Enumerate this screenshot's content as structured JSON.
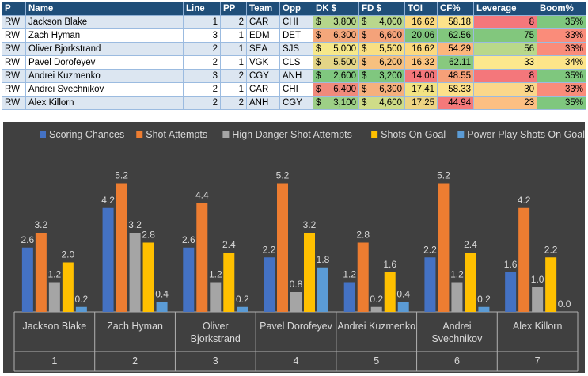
{
  "table": {
    "headers": [
      "P",
      "Name",
      "Line",
      "PP",
      "Team",
      "Opp",
      "DK $",
      "FD $",
      "TOI",
      "CF%",
      "Leverage",
      "Boom%"
    ],
    "rows": [
      {
        "pos": "RW",
        "name": "Jackson Blake",
        "line": "1",
        "pp": "2",
        "team": "CAR",
        "opp": "CHI",
        "dk": "3,800",
        "fd": "4,000",
        "toi": "16.62",
        "cf": "58.18",
        "lev": "8",
        "boom": "35%"
      },
      {
        "pos": "RW",
        "name": "Zach Hyman",
        "line": "3",
        "pp": "1",
        "team": "EDM",
        "opp": "DET",
        "dk": "6,300",
        "fd": "6,600",
        "toi": "20.06",
        "cf": "62.56",
        "lev": "75",
        "boom": "33%"
      },
      {
        "pos": "RW",
        "name": "Oliver Bjorkstrand",
        "line": "2",
        "pp": "1",
        "team": "SEA",
        "opp": "SJS",
        "dk": "5,000",
        "fd": "5,500",
        "toi": "16.62",
        "cf": "54.29",
        "lev": "56",
        "boom": "33%"
      },
      {
        "pos": "RW",
        "name": "Pavel Dorofeyev",
        "line": "2",
        "pp": "1",
        "team": "VGK",
        "opp": "CLS",
        "dk": "5,500",
        "fd": "6,200",
        "toi": "16.32",
        "cf": "62.11",
        "lev": "33",
        "boom": "34%"
      },
      {
        "pos": "RW",
        "name": "Andrei Kuzmenko",
        "line": "3",
        "pp": "2",
        "team": "CGY",
        "opp": "ANH",
        "dk": "2,600",
        "fd": "3,200",
        "toi": "14.00",
        "cf": "48.55",
        "lev": "8",
        "boom": "35%"
      },
      {
        "pos": "RW",
        "name": "Andrei Svechnikov",
        "line": "2",
        "pp": "1",
        "team": "CAR",
        "opp": "CHI",
        "dk": "6,400",
        "fd": "6,300",
        "toi": "17.41",
        "cf": "58.33",
        "lev": "30",
        "boom": "33%"
      },
      {
        "pos": "RW",
        "name": "Alex Killorn",
        "line": "2",
        "pp": "2",
        "team": "ANH",
        "opp": "CGY",
        "dk": "3,100",
        "fd": "4,600",
        "toi": "17.25",
        "cf": "44.94",
        "lev": "23",
        "boom": "35%"
      }
    ],
    "currency_symbol": "$",
    "colors": {
      "header_bg": "#1f4e79",
      "dk": [
        "#b5d58b",
        "#f4a77b",
        "#f6e88a",
        "#e4d587",
        "#80c77f",
        "#f08a7c",
        "#9dcf86"
      ],
      "fd": [
        "#b9d78c",
        "#f4a27a",
        "#f8df83",
        "#f6c07f",
        "#80c77f",
        "#f5b07d",
        "#cfdc88"
      ],
      "toi": [
        "#fbd97f",
        "#7fc47c",
        "#fbd97f",
        "#fcc580",
        "#f4777b",
        "#f2e383",
        "#edd483"
      ],
      "cf": [
        "#fce28a",
        "#82c77d",
        "#fcb67b",
        "#88c97e",
        "#f6a078",
        "#fde08a",
        "#f5797a"
      ],
      "lev": [
        "#f4777b",
        "#82c77d",
        "#b9d88a",
        "#fce88d",
        "#f4777b",
        "#fbd78a",
        "#fcbf82"
      ],
      "boom": [
        "#7fc77e",
        "#fa8c7a",
        "#fa8c7a",
        "#fde589",
        "#7fc77e",
        "#fa8c7a",
        "#7fc77e"
      ]
    }
  },
  "chart_data": {
    "type": "bar",
    "legend_position": "top",
    "categories": [
      "Jackson Blake",
      "Zach Hyman",
      "Oliver Bjorkstrand",
      "Pavel Dorofeyev",
      "Andrei Kuzmenko",
      "Andrei Svechnikov",
      "Alex Killorn"
    ],
    "category_numbers": [
      "1",
      "2",
      "3",
      "4",
      "5",
      "6",
      "7"
    ],
    "series": [
      {
        "name": "Scoring Chances",
        "color": "#4472c4",
        "values": [
          2.6,
          4.2,
          2.6,
          2.2,
          1.2,
          2.2,
          1.6
        ]
      },
      {
        "name": "Shot Attempts",
        "color": "#ed7d31",
        "values": [
          3.2,
          5.2,
          4.4,
          5.2,
          2.8,
          5.2,
          4.2
        ]
      },
      {
        "name": "High Danger Shot Attempts",
        "color": "#a5a5a5",
        "values": [
          1.2,
          3.2,
          1.2,
          0.8,
          0.2,
          1.2,
          1.0
        ]
      },
      {
        "name": "Shots On Goal",
        "color": "#ffc000",
        "values": [
          2.0,
          2.8,
          2.4,
          3.2,
          1.6,
          2.4,
          2.2
        ]
      },
      {
        "name": "Power Play Shots On Goal",
        "color": "#5b9bd5",
        "values": [
          0.2,
          0.4,
          0.2,
          1.8,
          0.4,
          0.2,
          0.0
        ]
      }
    ],
    "ylim": [
      0,
      6.4
    ],
    "grid": false,
    "colors": {
      "background": "#404040",
      "text": "#d9d9d9",
      "axis": "#b0b0b0"
    }
  }
}
